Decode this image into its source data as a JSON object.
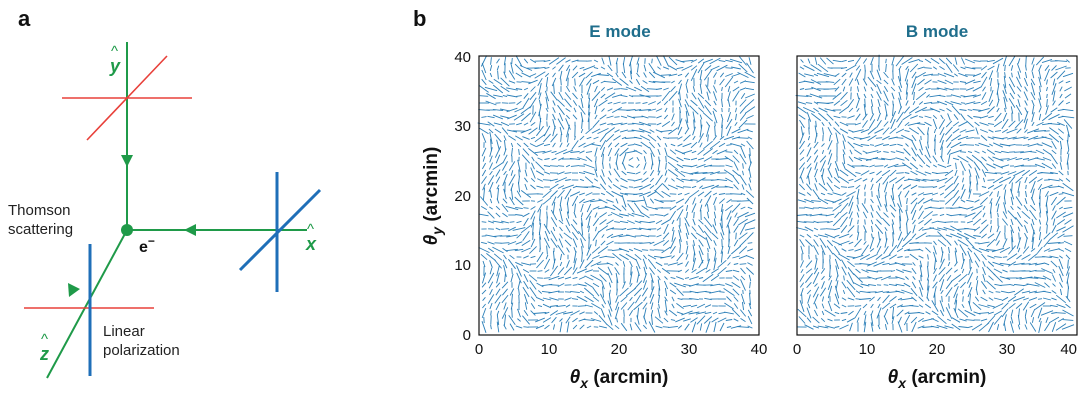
{
  "panels": {
    "a": "a",
    "b": "b"
  },
  "diagram": {
    "y_axis": "y",
    "x_axis": "x",
    "z_axis": "z",
    "hat": "^",
    "electron": "e",
    "electron_sup": "−",
    "scattering_line1": "Thomson",
    "scattering_line2": "scattering",
    "polarization_line1": "Linear",
    "polarization_line2": "polarization",
    "colors": {
      "beam": "#1f9a49",
      "red_pol": "#e8403a",
      "blue_pol": "#1f6fb8"
    }
  },
  "maps": [
    {
      "title": "E mode",
      "xlabel_var": "θ",
      "xlabel_sub": "x",
      "xlabel_unit": " (arcmin)",
      "xticks": [
        "0",
        "10",
        "20",
        "30",
        "40"
      ]
    },
    {
      "title": "B mode",
      "xlabel_var": "θ",
      "xlabel_sub": "x",
      "xlabel_unit": " (arcmin)",
      "xticks": [
        "0",
        "10",
        "20",
        "30",
        "40"
      ]
    }
  ],
  "ylabel_var": "θ",
  "ylabel_sub": "y",
  "ylabel_unit": " (arcmin)",
  "yticks": [
    "0",
    "10",
    "20",
    "30",
    "40"
  ],
  "field_color": "#2b7fb8"
}
